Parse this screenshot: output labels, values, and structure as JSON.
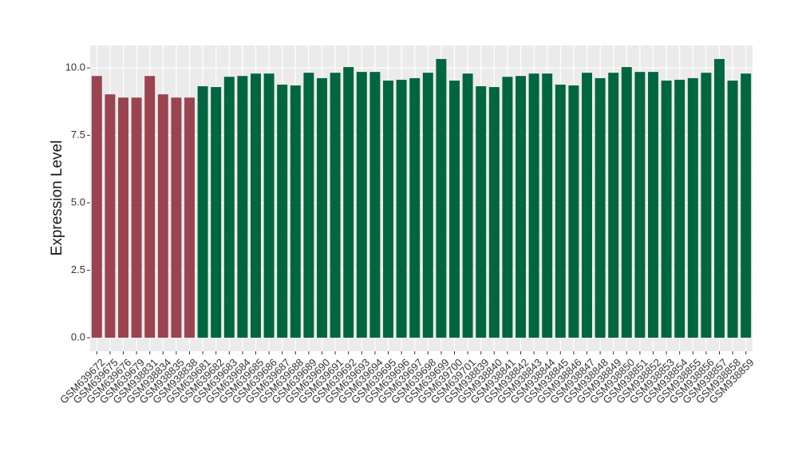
{
  "chart_data": {
    "type": "bar",
    "y_label": "Expression Level",
    "categories": [
      "GSM639672",
      "GSM639675",
      "GSM639676",
      "GSM639679",
      "GSM938831",
      "GSM938834",
      "GSM938835",
      "GSM938838",
      "GSM639681",
      "GSM639682",
      "GSM639683",
      "GSM639684",
      "GSM639685",
      "GSM639686",
      "GSM639687",
      "GSM639688",
      "GSM639689",
      "GSM639690",
      "GSM639691",
      "GSM639692",
      "GSM639693",
      "GSM639694",
      "GSM639695",
      "GSM639696",
      "GSM639697",
      "GSM639698",
      "GSM639699",
      "GSM639700",
      "GSM639701",
      "GSM938839",
      "GSM938840",
      "GSM938841",
      "GSM938842",
      "GSM938843",
      "GSM938844",
      "GSM938845",
      "GSM938846",
      "GSM938847",
      "GSM938848",
      "GSM938849",
      "GSM938850",
      "GSM938851",
      "GSM938852",
      "GSM938853",
      "GSM938854",
      "GSM938855",
      "GSM938856",
      "GSM938857",
      "GSM938858",
      "GSM938859"
    ],
    "values": [
      9.7,
      9.02,
      8.9,
      8.9,
      9.7,
      9.02,
      8.9,
      8.9,
      9.32,
      9.29,
      9.67,
      9.7,
      9.79,
      9.79,
      9.38,
      9.35,
      9.82,
      9.62,
      9.82,
      10.03,
      9.85,
      9.85,
      9.53,
      9.56,
      9.62,
      9.82,
      10.33,
      9.53,
      9.79,
      9.32,
      9.29,
      9.67,
      9.7,
      9.79,
      9.79,
      9.38,
      9.35,
      9.82,
      9.62,
      9.82,
      10.03,
      9.85,
      9.85,
      9.53,
      9.56,
      9.62,
      9.82,
      10.33,
      9.53,
      9.79
    ],
    "colors": [
      "#9a4450",
      "#9a4450",
      "#9a4450",
      "#9a4450",
      "#9a4450",
      "#9a4450",
      "#9a4450",
      "#9a4450",
      "#006640",
      "#006640",
      "#006640",
      "#006640",
      "#006640",
      "#006640",
      "#006640",
      "#006640",
      "#006640",
      "#006640",
      "#006640",
      "#006640",
      "#006640",
      "#006640",
      "#006640",
      "#006640",
      "#006640",
      "#006640",
      "#006640",
      "#006640",
      "#006640",
      "#006640",
      "#006640",
      "#006640",
      "#006640",
      "#006640",
      "#006640",
      "#006640",
      "#006640",
      "#006640",
      "#006640",
      "#006640",
      "#006640",
      "#006640",
      "#006640",
      "#006640",
      "#006640",
      "#006640",
      "#006640",
      "#006640",
      "#006640",
      "#006640"
    ],
    "ylim": [
      -0.5,
      10.83
    ],
    "yticks": [
      {
        "value": 0,
        "label": "0.0"
      },
      2.5,
      {
        "value": 5,
        "label": "5.0"
      },
      7.5,
      {
        "value": 10,
        "label": "10.0"
      }
    ],
    "grid": true
  }
}
